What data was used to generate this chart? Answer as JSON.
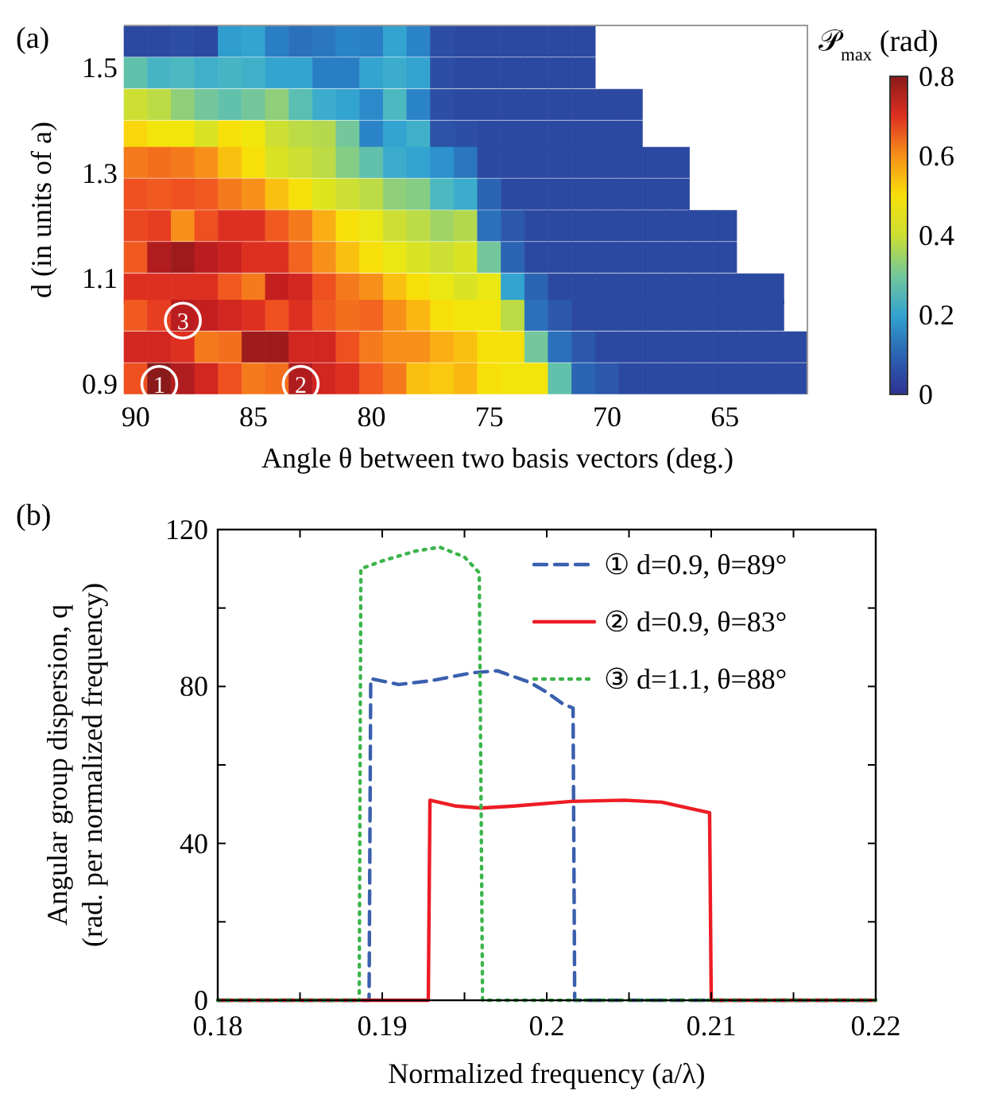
{
  "chart_data": [
    {
      "type": "heatmap",
      "title": "(a)",
      "xlabel": "Angle θ between two basis vectors  (deg.)",
      "ylabel": "d (in units of a)",
      "clabel": "𝒫$_{max}$ (rad)",
      "x": [
        90,
        89,
        88,
        87,
        86,
        85,
        84,
        83,
        82,
        81,
        80,
        79,
        78,
        77,
        76,
        75,
        74,
        73,
        72,
        71,
        70,
        69,
        68,
        67,
        66,
        65,
        64,
        63,
        62
      ],
      "y": [
        1.55,
        1.49,
        1.43,
        1.37,
        1.32,
        1.26,
        1.2,
        1.14,
        1.08,
        1.03,
        0.97,
        0.91
      ],
      "cells": [
        [
          0.05,
          0.05,
          0.06,
          0.05,
          0.19,
          0.2,
          0.14,
          0.12,
          0.13,
          0.15,
          0.14,
          0.2,
          0.15,
          0.06,
          0.05,
          0.05,
          0.05,
          0.05,
          0.05,
          0.05,
          null,
          null,
          null,
          null,
          null,
          null,
          null,
          null,
          null
        ],
        [
          0.28,
          0.24,
          0.25,
          0.23,
          0.24,
          0.23,
          0.2,
          0.2,
          0.14,
          0.14,
          0.2,
          0.22,
          0.2,
          0.06,
          0.05,
          0.05,
          0.05,
          0.05,
          0.05,
          0.05,
          null,
          null,
          null,
          null,
          null,
          null,
          null,
          null,
          null
        ],
        [
          0.4,
          0.38,
          0.33,
          0.3,
          0.28,
          0.3,
          0.33,
          0.27,
          0.22,
          0.2,
          0.16,
          0.25,
          0.15,
          0.06,
          0.05,
          0.05,
          0.05,
          0.05,
          0.05,
          0.05,
          0.05,
          0.05,
          null,
          null,
          null,
          null,
          null,
          null,
          null
        ],
        [
          0.52,
          0.48,
          0.48,
          0.42,
          0.5,
          0.47,
          0.4,
          0.38,
          0.37,
          0.3,
          0.15,
          0.2,
          0.23,
          0.07,
          0.06,
          0.05,
          0.05,
          0.05,
          0.05,
          0.05,
          0.05,
          0.05,
          null,
          null,
          null,
          null,
          null,
          null,
          null
        ],
        [
          0.62,
          0.63,
          0.62,
          0.6,
          0.55,
          0.5,
          0.42,
          0.4,
          0.38,
          0.32,
          0.28,
          0.22,
          0.2,
          0.17,
          0.13,
          0.05,
          0.05,
          0.05,
          0.05,
          0.05,
          0.05,
          0.05,
          0.05,
          0.05,
          null,
          null,
          null,
          null,
          null
        ],
        [
          0.66,
          0.65,
          0.66,
          0.65,
          0.62,
          0.6,
          0.55,
          0.5,
          0.43,
          0.4,
          0.38,
          0.33,
          0.32,
          0.25,
          0.22,
          0.1,
          0.05,
          0.05,
          0.05,
          0.05,
          0.05,
          0.05,
          0.05,
          0.05,
          null,
          null,
          null,
          null,
          null
        ],
        [
          0.67,
          0.68,
          0.6,
          0.66,
          0.7,
          0.7,
          0.65,
          0.62,
          0.57,
          0.5,
          0.45,
          0.4,
          0.38,
          0.35,
          0.37,
          0.12,
          0.08,
          0.05,
          0.05,
          0.05,
          0.05,
          0.05,
          0.05,
          0.05,
          0.05,
          0.05,
          null,
          null,
          null
        ],
        [
          0.65,
          0.76,
          0.78,
          0.75,
          0.73,
          0.7,
          0.7,
          0.64,
          0.6,
          0.55,
          0.5,
          0.45,
          0.42,
          0.4,
          0.42,
          0.3,
          0.1,
          0.05,
          0.05,
          0.05,
          0.05,
          0.05,
          0.05,
          0.05,
          0.05,
          0.05,
          null,
          null,
          null
        ],
        [
          0.7,
          0.7,
          0.7,
          0.7,
          0.65,
          0.62,
          0.74,
          0.72,
          0.66,
          0.62,
          0.6,
          0.55,
          0.5,
          0.45,
          0.42,
          0.45,
          0.2,
          0.1,
          0.05,
          0.05,
          0.05,
          0.05,
          0.05,
          0.05,
          0.05,
          0.05,
          0.05,
          0.05,
          null
        ],
        [
          0.65,
          0.68,
          0.75,
          0.74,
          0.72,
          0.7,
          0.66,
          0.7,
          0.65,
          0.63,
          0.64,
          0.6,
          0.56,
          0.5,
          0.48,
          0.48,
          0.38,
          0.12,
          0.08,
          0.05,
          0.05,
          0.05,
          0.05,
          0.05,
          0.05,
          0.05,
          0.05,
          0.05,
          null
        ],
        [
          0.72,
          0.72,
          0.7,
          0.62,
          0.63,
          0.78,
          0.78,
          0.72,
          0.72,
          0.66,
          0.62,
          0.6,
          0.6,
          0.57,
          0.55,
          0.5,
          0.5,
          0.3,
          0.12,
          0.08,
          0.05,
          0.05,
          0.05,
          0.05,
          0.05,
          0.05,
          0.05,
          0.05,
          0.05
        ],
        [
          0.66,
          0.8,
          0.76,
          0.72,
          0.66,
          0.62,
          0.63,
          0.76,
          0.72,
          0.7,
          0.65,
          0.62,
          0.55,
          0.54,
          0.56,
          0.5,
          0.48,
          0.48,
          0.28,
          0.1,
          0.08,
          0.05,
          0.05,
          0.05,
          0.05,
          0.05,
          0.05,
          0.05,
          0.05
        ]
      ],
      "xlim": [
        90.5,
        61.5
      ],
      "xticks": [
        90,
        85,
        80,
        75,
        70,
        65
      ],
      "ylim": [
        0.88,
        1.58
      ],
      "yticks": [
        0.9,
        1.1,
        1.3,
        1.5
      ],
      "clim": [
        0,
        0.8
      ],
      "cticks": [
        0,
        0.2,
        0.4,
        0.6,
        0.8
      ],
      "annotations": [
        {
          "text": "1",
          "x": 89,
          "y": 0.9
        },
        {
          "text": "2",
          "x": 83,
          "y": 0.9
        },
        {
          "text": "3",
          "x": 88,
          "y": 1.02
        }
      ]
    },
    {
      "type": "line",
      "title": "(b)",
      "xlabel": "Normalized frequency (a/λ)",
      "ylabel": "Angular group dispersion, q\n(rad. per normalized frequency)",
      "legend": "top right",
      "xlim": [
        0.18,
        0.22
      ],
      "xticks": [
        0.18,
        {
          "value": 0.185,
          "label": null
        },
        0.19,
        {
          "value": 0.195,
          "label": null
        },
        0.2,
        {
          "value": 0.205,
          "label": null
        },
        0.21,
        {
          "value": 0.215,
          "label": null
        },
        0.22
      ],
      "ylim": [
        0,
        120
      ],
      "yticks": [
        0,
        {
          "value": 20,
          "label": null
        },
        40,
        {
          "value": 60,
          "label": null
        },
        80,
        {
          "value": 100,
          "label": null
        },
        120
      ],
      "series": [
        {
          "name": "① d=0.9, θ=89°",
          "color": "#3a5fad",
          "line_style": "dashed",
          "x": [
            0.18,
            0.1892,
            0.1893,
            0.191,
            0.193,
            0.1955,
            0.197,
            0.199,
            0.2,
            0.201,
            0.2016,
            0.2017,
            0.22
          ],
          "values": [
            0,
            0,
            82,
            80.5,
            81.5,
            83.5,
            84,
            81,
            78.5,
            75.5,
            74.5,
            0,
            0
          ]
        },
        {
          "name": "② d=0.9, θ=83°",
          "color": "#ed1c24",
          "line_style": "solid",
          "x": [
            0.18,
            0.1928,
            0.1929,
            0.1945,
            0.196,
            0.198,
            0.2015,
            0.2047,
            0.207,
            0.2099,
            0.21,
            0.22
          ],
          "values": [
            0,
            0,
            51,
            49.5,
            49,
            49.5,
            50.7,
            51,
            50.5,
            47.8,
            0,
            0
          ]
        },
        {
          "name": "③ d=1.1, θ=88°",
          "color": "#3cb44b",
          "line_style": "dotted",
          "x": [
            0.18,
            0.1886,
            0.1887,
            0.19,
            0.192,
            0.1935,
            0.195,
            0.1959,
            0.1961,
            0.22
          ],
          "values": [
            0,
            0,
            110,
            112,
            114.5,
            115.5,
            113,
            109,
            0,
            0
          ]
        }
      ]
    }
  ]
}
